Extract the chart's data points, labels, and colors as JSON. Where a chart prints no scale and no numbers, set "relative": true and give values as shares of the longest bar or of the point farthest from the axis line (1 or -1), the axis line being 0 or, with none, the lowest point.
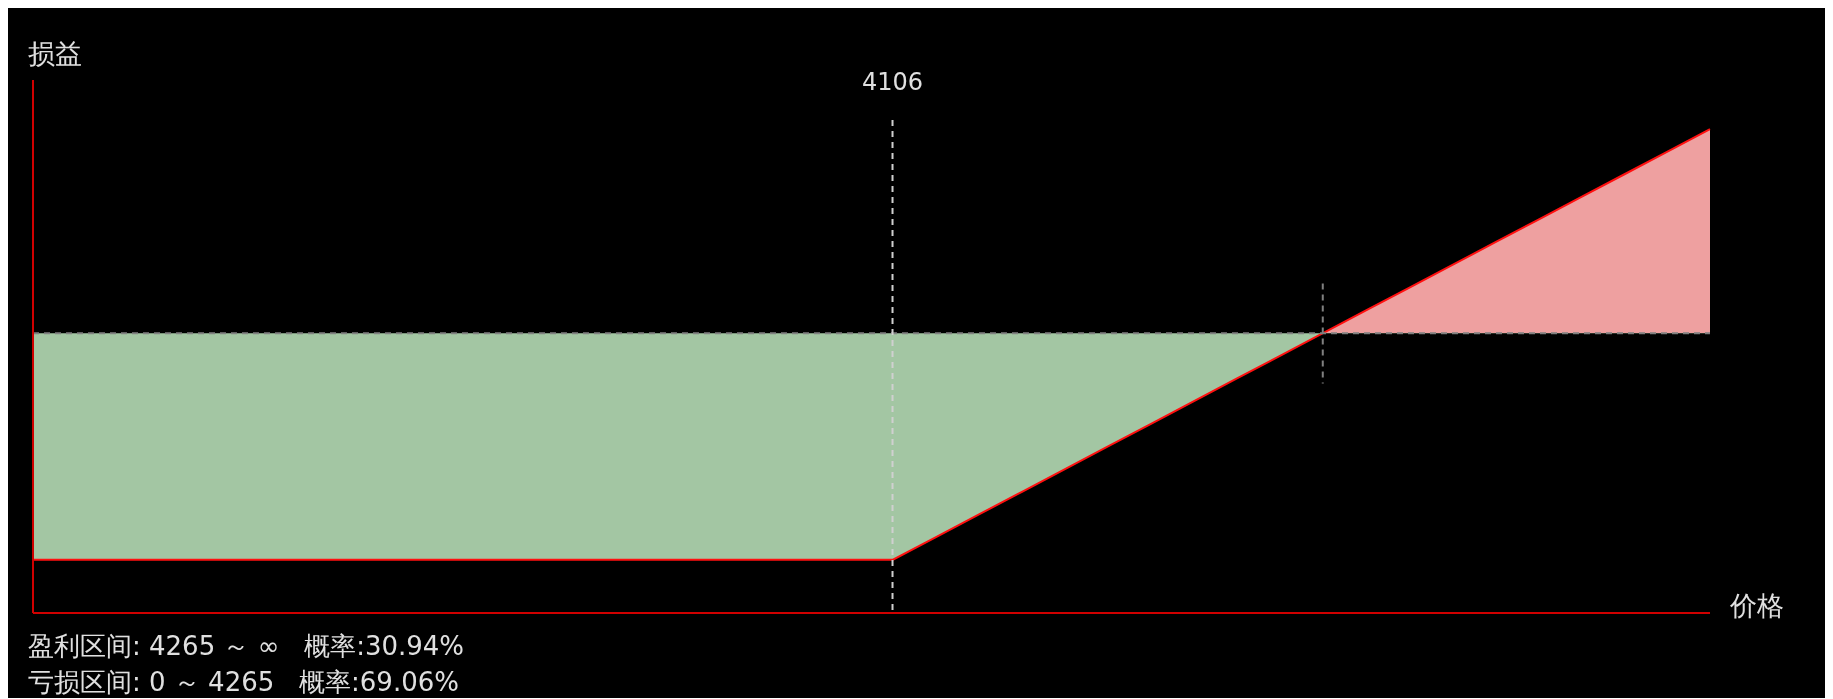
{
  "chart_data": {
    "type": "area",
    "relative": true,
    "ylabel": "损益",
    "xlabel": "价格",
    "categories": [
      null,
      null,
      null,
      null,
      null,
      null,
      null,
      null,
      null,
      null,
      null,
      null,
      null,
      null,
      null,
      null,
      null,
      null,
      null,
      null,
      null,
      null,
      null,
      null,
      null,
      null,
      null,
      null,
      null,
      null,
      null,
      null,
      null,
      null,
      null,
      null,
      null,
      null,
      null,
      null
    ],
    "series": [
      {
        "color": "#ff1010",
        "values": [
          -1,
          -1,
          -1,
          -1,
          -1,
          -1,
          -1,
          -1,
          -1,
          -1,
          -1,
          -1,
          -1,
          -1,
          -1,
          -1,
          -1,
          -1,
          -1,
          -1,
          -1,
          -0.9,
          -0.8,
          -0.7,
          -0.6,
          -0.5,
          -0.4,
          -0.3,
          -0.2,
          -0.1,
          0,
          0.1,
          0.2,
          0.3,
          0.4,
          0.5,
          0.6,
          0.7,
          0.8,
          0.9
        ]
      }
    ],
    "colors": [
      "#a3c6a3",
      "#eea0a0"
    ],
    "ref_lines": [
      {
        "axis": "y",
        "value": 0,
        "label": null,
        "color": "#808080",
        "line_style": "dashed"
      }
    ],
    "annotations": [
      "4106",
      "盈利区间: 4265 ～ ∞   概率:30.94%",
      "亏损区间: 0 ～ 4265   概率:69.06%"
    ]
  }
}
